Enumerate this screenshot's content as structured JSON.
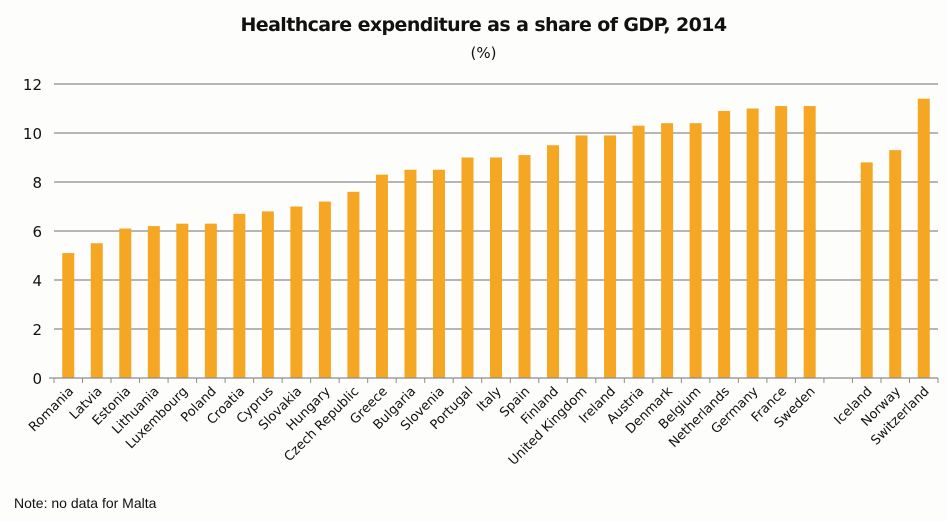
{
  "chart_data": {
    "type": "bar",
    "title": "Healthcare expenditure as a share of GDP, 2014",
    "subtitle": "(%)",
    "xlabel": "",
    "ylabel": "",
    "ylim": [
      0,
      12
    ],
    "yticks": [
      0,
      2,
      4,
      6,
      8,
      10,
      12
    ],
    "grid": true,
    "bar_color": "#f5a623",
    "categories": [
      "Romania",
      "Latvia",
      "Estonia",
      "Lithuania",
      "Luxembourg",
      "Poland",
      "Croatia",
      "Cyprus",
      "Slovakia",
      "Hungary",
      "Czech Republic",
      "Greece",
      "Bulgaria",
      "Slovenia",
      "Portugal",
      "Italy",
      "Spain",
      "Finland",
      "United Kingdom",
      "Ireland",
      "Austria",
      "Denmark",
      "Belgium",
      "Netherlands",
      "Germany",
      "France",
      "Sweden",
      "",
      "Iceland",
      "Norway",
      "Switzerland"
    ],
    "values": [
      5.1,
      5.5,
      6.1,
      6.2,
      6.3,
      6.3,
      6.7,
      6.8,
      7.0,
      7.2,
      7.6,
      8.3,
      8.5,
      8.5,
      9.0,
      9.0,
      9.1,
      9.5,
      9.9,
      9.9,
      10.3,
      10.4,
      10.4,
      10.9,
      11.0,
      11.1,
      11.1,
      null,
      8.8,
      9.3,
      11.4
    ],
    "note": "Note: no data for Malta"
  }
}
